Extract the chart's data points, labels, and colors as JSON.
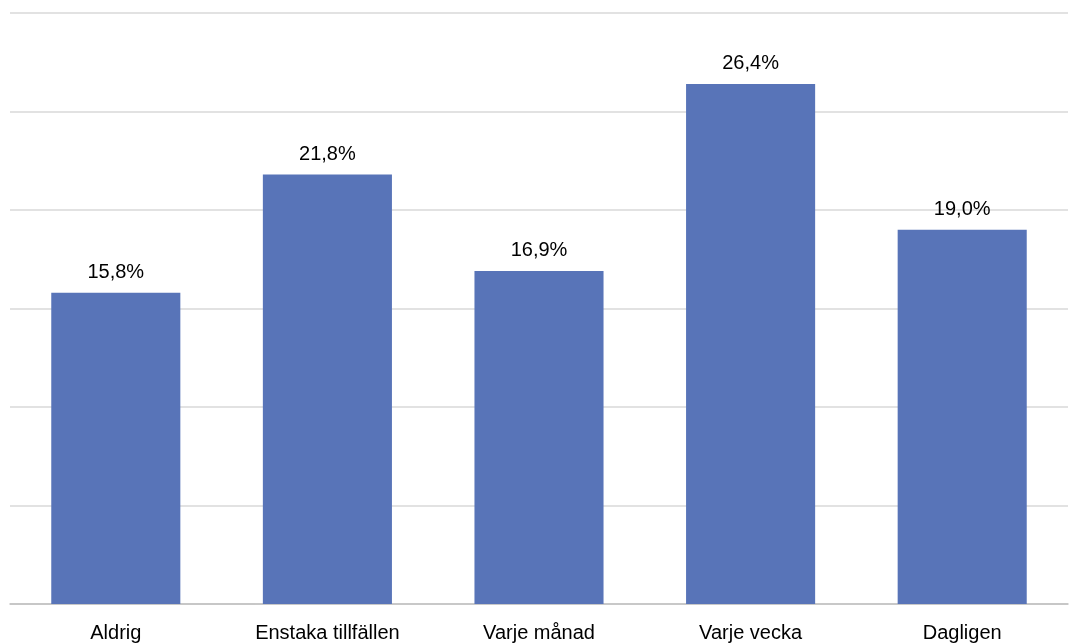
{
  "chart_data": {
    "type": "bar",
    "categories": [
      "Aldrig",
      "Enstaka tillfällen",
      "Varje månad",
      "Varje vecka",
      "Dagligen"
    ],
    "values": [
      15.8,
      21.8,
      16.9,
      26.4,
      19.0
    ],
    "value_labels": [
      "15,8%",
      "21,8%",
      "16,9%",
      "26,4%",
      "19,0%"
    ],
    "color": "#5874b8",
    "ylim": [
      0,
      30
    ],
    "yticks": [
      {
        "value": 0,
        "label": null
      },
      {
        "value": 5,
        "label": null
      },
      {
        "value": 10,
        "label": null
      },
      {
        "value": 15,
        "label": null
      },
      {
        "value": 20,
        "label": null
      },
      {
        "value": 25,
        "label": null
      },
      {
        "value": 30,
        "label": null
      }
    ],
    "grid": "y",
    "tick_labels": "x"
  }
}
